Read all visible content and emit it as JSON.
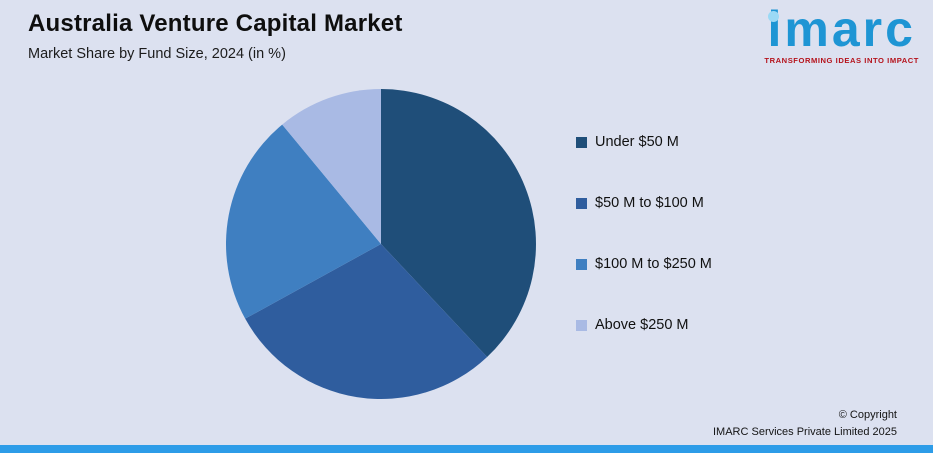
{
  "header": {
    "title": "Australia Venture Capital Market",
    "subtitle": "Market Share by Fund Size, 2024 (in %)"
  },
  "logo": {
    "wordmark": "imarc",
    "tagline": "TRANSFORMING IDEAS INTO IMPACT"
  },
  "legend": {
    "items": [
      {
        "label": "Under $50 M",
        "color": "#1f4e79"
      },
      {
        "label": "$50 M to $100 M",
        "color": "#2f5d9e"
      },
      {
        "label": "$100 M to $250 M",
        "color": "#3f7fc1"
      },
      {
        "label": "Above $250 M",
        "color": "#a9bae4"
      }
    ]
  },
  "footer": {
    "copyright_line1": "© Copyright",
    "copyright_line2": "IMARC Services Private Limited 2025"
  },
  "chart_data": {
    "type": "pie",
    "title": "Australia Venture Capital Market",
    "subtitle": "Market Share by Fund Size, 2024 (in %)",
    "categories": [
      "Under $50 M",
      "$50 M to $100 M",
      "$100 M to $250 M",
      "Above $250 M"
    ],
    "values": [
      38,
      29,
      22,
      11
    ],
    "unit": "%",
    "colors": [
      "#1f4e79",
      "#2f5d9e",
      "#3f7fc1",
      "#a9bae4"
    ],
    "start_angle_deg": 0,
    "direction": "clockwise",
    "legend_position": "right"
  }
}
